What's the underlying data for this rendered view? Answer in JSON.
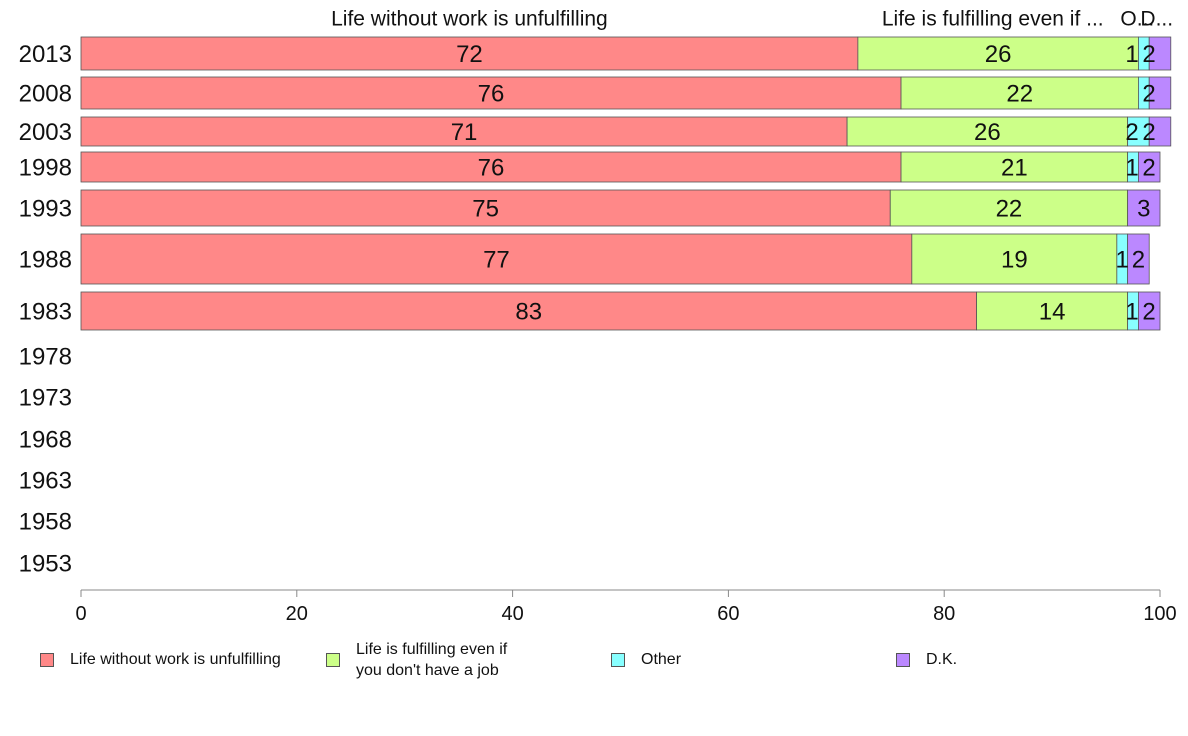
{
  "chart_data": {
    "type": "bar",
    "orientation": "horizontal",
    "stacked": true,
    "categories": [
      "2013",
      "2008",
      "2003",
      "1998",
      "1993",
      "1988",
      "1983",
      "1978",
      "1973",
      "1968",
      "1963",
      "1958",
      "1953"
    ],
    "series": [
      {
        "name": "Life without work is unfulfilling",
        "values": [
          72,
          76,
          71,
          76,
          75,
          77,
          83,
          null,
          null,
          null,
          null,
          null,
          null
        ],
        "color": "#ff8888"
      },
      {
        "name": "Life is fulfilling even if you don't have a job",
        "values": [
          26,
          22,
          26,
          21,
          22,
          19,
          14,
          null,
          null,
          null,
          null,
          null,
          null
        ],
        "color": "#ccff88"
      },
      {
        "name": "Other",
        "values": [
          1,
          1,
          2,
          1,
          0,
          1,
          1,
          null,
          null,
          null,
          null,
          null,
          null
        ],
        "color": "#88ffff"
      },
      {
        "name": "D.K.",
        "values": [
          2,
          2,
          2,
          2,
          3,
          2,
          2,
          null,
          null,
          null,
          null,
          null,
          null
        ],
        "color": "#bb88ff"
      }
    ],
    "segment_labels": [
      [
        "72",
        "26",
        "1",
        "2"
      ],
      [
        "76",
        "22",
        "",
        "2"
      ],
      [
        "71",
        "26",
        "2",
        "2"
      ],
      [
        "76",
        "21",
        "1",
        "2"
      ],
      [
        "75",
        "22",
        "",
        "3"
      ],
      [
        "77",
        "19",
        "1",
        "2"
      ],
      [
        "83",
        "14",
        "1",
        "2"
      ]
    ],
    "top_labels": [
      "Life without work is unfulfilling",
      "Life is fulfilling even if ...",
      "O...",
      "D..."
    ],
    "legend_labels": [
      {
        "lines": [
          "Life without work is unfulfilling"
        ]
      },
      {
        "lines": [
          "Life is fulfilling even if",
          "you don't have a job"
        ]
      },
      {
        "lines": [
          "Other"
        ]
      },
      {
        "lines": [
          "D.K."
        ]
      }
    ],
    "xticks": [
      "0",
      "20",
      "40",
      "60",
      "80",
      "100"
    ],
    "xlim": [
      0,
      100
    ],
    "grid": false,
    "legend_position": "bottom"
  }
}
